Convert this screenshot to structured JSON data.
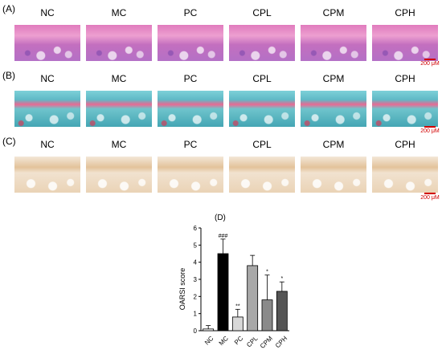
{
  "panels": [
    {
      "label": "(A)",
      "stain": "he"
    },
    {
      "label": "(B)",
      "stain": "sf"
    },
    {
      "label": "(C)",
      "stain": "ihc"
    }
  ],
  "groups": [
    "NC",
    "MC",
    "PC",
    "CPL",
    "CPM",
    "CPH"
  ],
  "scale_bar": "200 μM",
  "chart_data": {
    "type": "bar",
    "panel_label": "(D)",
    "title": "",
    "xlabel": "",
    "ylabel": "OARSI score",
    "categories": [
      "NC",
      "MC",
      "PC",
      "CPL",
      "CPM",
      "CPH"
    ],
    "values": [
      0.1,
      4.5,
      0.8,
      3.8,
      1.8,
      2.3
    ],
    "errors": [
      0.2,
      0.85,
      0.45,
      0.6,
      1.45,
      0.55
    ],
    "annotations": [
      "",
      "###",
      "**",
      "",
      "*",
      "*"
    ],
    "ylim": [
      0,
      6
    ],
    "yticks": [
      0,
      1,
      2,
      3,
      4,
      5,
      6
    ],
    "grid": false,
    "colors": [
      "#ffffff",
      "#000000",
      "#d8d8d8",
      "#a8a8a8",
      "#8a8a8a",
      "#555555"
    ]
  }
}
